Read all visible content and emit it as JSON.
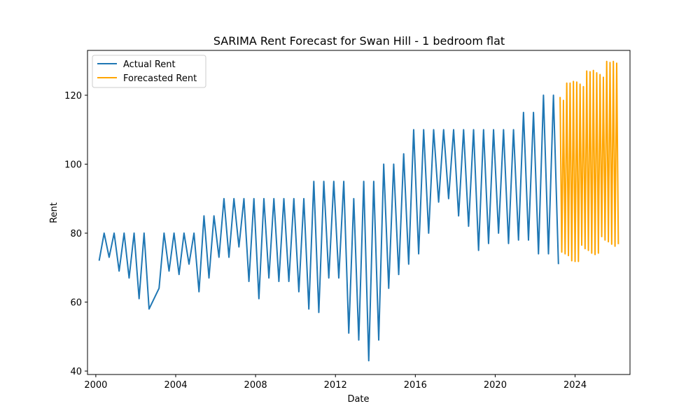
{
  "chart_data": {
    "type": "line",
    "title": "SARIMA Rent Forecast for Swan Hill - 1 bedroom flat",
    "xlabel": "Date",
    "ylabel": "Rent",
    "x_ticks": [
      "2000",
      "2004",
      "2008",
      "2012",
      "2016",
      "2020",
      "2024"
    ],
    "y_ticks": [
      40,
      60,
      80,
      100,
      120
    ],
    "xlim": [
      "1999-08",
      "2026-10"
    ],
    "ylim": [
      39,
      133
    ],
    "grid": false,
    "legend": "top-left",
    "series": [
      {
        "name": "Actual Rent",
        "color": "#1f77b4",
        "points": [
          [
            "2000-03",
            72
          ],
          [
            "2000-06",
            80
          ],
          [
            "2000-09",
            73
          ],
          [
            "2000-12",
            80
          ],
          [
            "2001-03",
            69
          ],
          [
            "2001-06",
            80
          ],
          [
            "2001-09",
            67
          ],
          [
            "2001-12",
            80
          ],
          [
            "2002-03",
            61
          ],
          [
            "2002-06",
            80
          ],
          [
            "2002-09",
            58
          ],
          [
            "2003-03",
            64
          ],
          [
            "2003-06",
            80
          ],
          [
            "2003-09",
            69
          ],
          [
            "2003-12",
            80
          ],
          [
            "2004-03",
            68
          ],
          [
            "2004-06",
            80
          ],
          [
            "2004-09",
            71
          ],
          [
            "2004-12",
            80
          ],
          [
            "2005-03",
            63
          ],
          [
            "2005-06",
            85
          ],
          [
            "2005-09",
            67
          ],
          [
            "2005-12",
            85
          ],
          [
            "2006-03",
            73
          ],
          [
            "2006-06",
            90
          ],
          [
            "2006-09",
            73
          ],
          [
            "2006-12",
            90
          ],
          [
            "2007-03",
            76
          ],
          [
            "2007-06",
            90
          ],
          [
            "2007-09",
            66
          ],
          [
            "2007-12",
            90
          ],
          [
            "2008-03",
            61
          ],
          [
            "2008-06",
            90
          ],
          [
            "2008-09",
            67
          ],
          [
            "2008-12",
            90
          ],
          [
            "2009-03",
            66
          ],
          [
            "2009-06",
            90
          ],
          [
            "2009-09",
            66
          ],
          [
            "2009-12",
            90
          ],
          [
            "2010-03",
            63
          ],
          [
            "2010-06",
            90
          ],
          [
            "2010-09",
            58
          ],
          [
            "2010-12",
            95
          ],
          [
            "2011-03",
            57
          ],
          [
            "2011-06",
            95
          ],
          [
            "2011-09",
            67
          ],
          [
            "2011-12",
            95
          ],
          [
            "2012-03",
            67
          ],
          [
            "2012-06",
            95
          ],
          [
            "2012-09",
            51
          ],
          [
            "2012-12",
            90
          ],
          [
            "2013-03",
            49
          ],
          [
            "2013-06",
            95
          ],
          [
            "2013-09",
            43
          ],
          [
            "2013-12",
            95
          ],
          [
            "2014-03",
            49
          ],
          [
            "2014-06",
            100
          ],
          [
            "2014-09",
            64
          ],
          [
            "2014-12",
            100
          ],
          [
            "2015-03",
            68
          ],
          [
            "2015-06",
            103
          ],
          [
            "2015-09",
            71
          ],
          [
            "2015-12",
            110
          ],
          [
            "2016-03",
            74
          ],
          [
            "2016-06",
            110
          ],
          [
            "2016-09",
            80
          ],
          [
            "2016-12",
            110
          ],
          [
            "2017-03",
            89
          ],
          [
            "2017-06",
            110
          ],
          [
            "2017-09",
            90
          ],
          [
            "2017-12",
            110
          ],
          [
            "2018-03",
            85
          ],
          [
            "2018-06",
            110
          ],
          [
            "2018-09",
            82
          ],
          [
            "2018-12",
            110
          ],
          [
            "2019-03",
            75
          ],
          [
            "2019-06",
            110
          ],
          [
            "2019-09",
            77
          ],
          [
            "2019-12",
            110
          ],
          [
            "2020-03",
            80
          ],
          [
            "2020-06",
            110
          ],
          [
            "2020-09",
            77
          ],
          [
            "2020-12",
            110
          ],
          [
            "2021-03",
            78
          ],
          [
            "2021-06",
            115
          ],
          [
            "2021-09",
            78
          ],
          [
            "2021-12",
            115
          ],
          [
            "2022-03",
            74
          ],
          [
            "2022-06",
            120
          ],
          [
            "2022-09",
            74
          ],
          [
            "2022-12",
            120
          ],
          [
            "2023-03",
            71
          ]
        ]
      },
      {
        "name": "Forecasted Rent",
        "color": "#ffa500",
        "points": [
          [
            "2023-04",
            119.5
          ],
          [
            "2023-05",
            74.5
          ],
          [
            "2023-06",
            118.5
          ],
          [
            "2023-07",
            74
          ],
          [
            "2023-08",
            123.5
          ],
          [
            "2023-09",
            73.5
          ],
          [
            "2023-10",
            123.5
          ],
          [
            "2023-11",
            72
          ],
          [
            "2023-12",
            124
          ],
          [
            "2024-01",
            71.8
          ],
          [
            "2024-02",
            123.8
          ],
          [
            "2024-03",
            71.8
          ],
          [
            "2024-04",
            123.2
          ],
          [
            "2024-05",
            76.5
          ],
          [
            "2024-06",
            122.5
          ],
          [
            "2024-07",
            75.5
          ],
          [
            "2024-08",
            127
          ],
          [
            "2024-09",
            75
          ],
          [
            "2024-10",
            126.8
          ],
          [
            "2024-11",
            74.2
          ],
          [
            "2024-12",
            127.2
          ],
          [
            "2025-01",
            73.8
          ],
          [
            "2025-02",
            126.5
          ],
          [
            "2025-03",
            74.2
          ],
          [
            "2025-04",
            126
          ],
          [
            "2025-05",
            79
          ],
          [
            "2025-06",
            125.2
          ],
          [
            "2025-07",
            78
          ],
          [
            "2025-08",
            129.8
          ],
          [
            "2025-09",
            77.5
          ],
          [
            "2025-10",
            129.5
          ],
          [
            "2025-11",
            76.8
          ],
          [
            "2025-12",
            129.8
          ],
          [
            "2026-01",
            76.2
          ],
          [
            "2026-02",
            129.3
          ],
          [
            "2026-03",
            76.8
          ]
        ]
      }
    ]
  }
}
